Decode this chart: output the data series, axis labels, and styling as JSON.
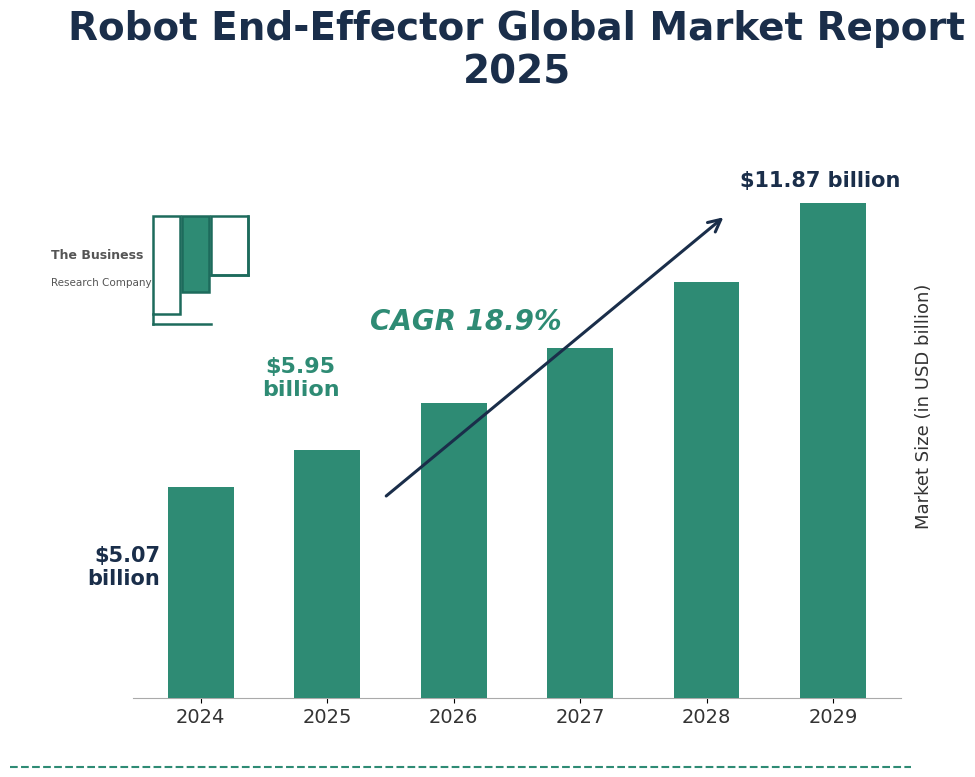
{
  "title": "Robot End-Effector Global Market Report\n2025",
  "years": [
    "2024",
    "2025",
    "2026",
    "2027",
    "2028",
    "2029"
  ],
  "values": [
    5.07,
    5.95,
    7.07,
    8.4,
    9.98,
    11.87
  ],
  "bar_color": "#2e8b74",
  "background_color": "#ffffff",
  "title_color": "#1a2e4a",
  "label_2024": "$5.07\nbillion",
  "label_2025": "$5.95\nbillion",
  "label_2029": "$11.87 billion",
  "label_2024_color": "#1a2e4a",
  "label_2025_color": "#2e8b74",
  "label_2029_color": "#1a2e4a",
  "cagr_text": "CAGR 18.9%",
  "cagr_color": "#2e8b74",
  "ylabel": "Market Size (in USD billion)",
  "ylim": [
    0,
    14
  ],
  "bottom_line_color": "#2e8b74",
  "title_fontsize": 28,
  "axis_label_fontsize": 13,
  "tick_fontsize": 14,
  "bar_label_fontsize": 14,
  "cagr_fontsize": 20,
  "teal_outline": "#1d6b5c",
  "teal_fill": "#2e8b74"
}
